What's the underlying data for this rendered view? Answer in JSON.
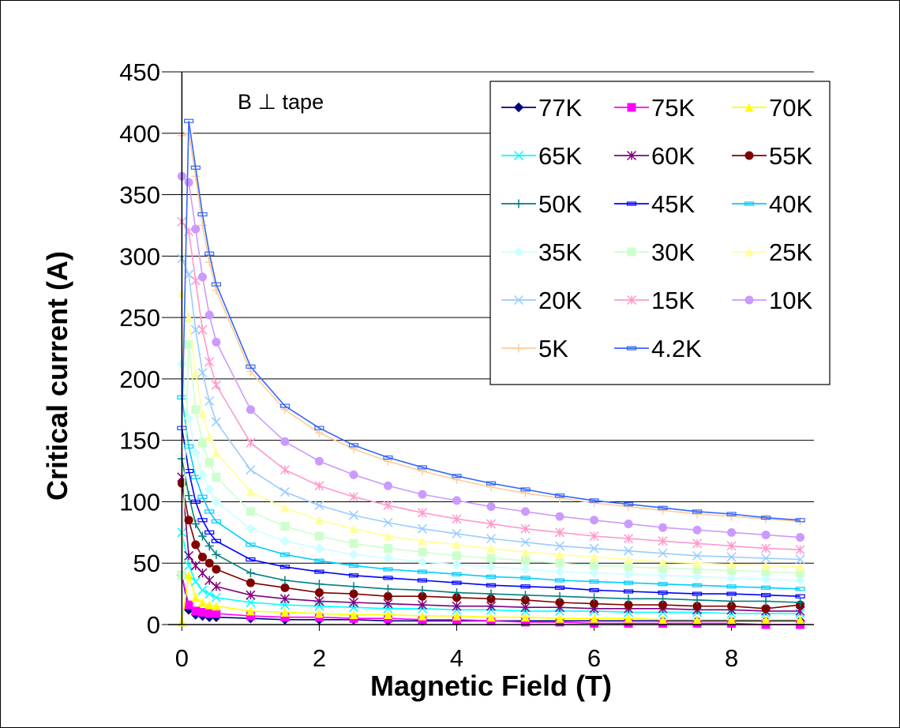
{
  "chart_data": {
    "type": "line",
    "title": "",
    "xlabel": "Magnetic Field (T)",
    "ylabel": "Critical current (A)",
    "xlim": [
      -0.2,
      9.2
    ],
    "ylim": [
      0,
      450
    ],
    "xticks": [
      0,
      2,
      4,
      6,
      8
    ],
    "yticks": [
      0,
      50,
      100,
      150,
      200,
      250,
      300,
      350,
      400,
      450
    ],
    "grid": "horizontal",
    "legend_position": "top-right",
    "annotation": "B ⊥ tape",
    "x": [
      0,
      0.1,
      0.2,
      0.3,
      0.4,
      0.5,
      1,
      1.5,
      2,
      2.5,
      3,
      3.5,
      4,
      4.5,
      5,
      5.5,
      6,
      6.5,
      7,
      7.5,
      8,
      8.5,
      9
    ],
    "series": [
      {
        "name": "77K",
        "color": "#000080",
        "marker": "diamond",
        "values": [
          40,
          12,
          8,
          7,
          6,
          6,
          5,
          4,
          4,
          4,
          3,
          3,
          3,
          3,
          3,
          3,
          3,
          3,
          3,
          3,
          3,
          3,
          3
        ]
      },
      {
        "name": "75K",
        "color": "#ff00ff",
        "marker": "square",
        "values": [
          40,
          16,
          11,
          10,
          9,
          9,
          7,
          6,
          6,
          5,
          5,
          4,
          4,
          3,
          2,
          2,
          1,
          1,
          1,
          1,
          1,
          0,
          0
        ]
      },
      {
        "name": "70K",
        "color": "#ffff00",
        "marker": "triangle",
        "values": [
          2,
          40,
          22,
          18,
          16,
          15,
          11,
          10,
          9,
          8,
          8,
          7,
          7,
          6,
          6,
          5,
          5,
          5,
          4,
          4,
          4,
          4,
          4
        ]
      },
      {
        "name": "65K",
        "color": "#00ffff",
        "marker": "x",
        "values": [
          75,
          48,
          35,
          28,
          25,
          22,
          18,
          16,
          15,
          14,
          13,
          13,
          12,
          12,
          11,
          11,
          11,
          10,
          10,
          10,
          9,
          9,
          9
        ]
      },
      {
        "name": "60K",
        "color": "#800080",
        "marker": "star",
        "values": [
          120,
          56,
          48,
          42,
          36,
          31,
          24,
          21,
          19,
          18,
          17,
          16,
          15,
          15,
          14,
          14,
          13,
          13,
          13,
          12,
          12,
          11,
          11
        ]
      },
      {
        "name": "55K",
        "color": "#800000",
        "marker": "circle",
        "values": [
          115,
          85,
          65,
          55,
          50,
          45,
          34,
          30,
          26,
          25,
          23,
          23,
          22,
          21,
          20,
          18,
          17,
          16,
          16,
          15,
          15,
          13,
          16
        ]
      },
      {
        "name": "50K",
        "color": "#008080",
        "marker": "plus",
        "values": [
          135,
          105,
          82,
          72,
          64,
          57,
          42,
          36,
          33,
          31,
          29,
          28,
          26,
          25,
          24,
          23,
          22,
          21,
          21,
          20,
          19,
          19,
          18
        ]
      },
      {
        "name": "45K",
        "color": "#0000ff",
        "marker": "dash",
        "values": [
          160,
          125,
          100,
          85,
          75,
          68,
          53,
          47,
          43,
          40,
          38,
          36,
          34,
          32,
          31,
          30,
          28,
          27,
          26,
          25,
          25,
          24,
          23
        ]
      },
      {
        "name": "40K",
        "color": "#00ccff",
        "marker": "dash",
        "values": [
          185,
          145,
          120,
          104,
          92,
          84,
          65,
          57,
          52,
          48,
          45,
          43,
          41,
          39,
          38,
          36,
          35,
          34,
          33,
          32,
          31,
          30,
          29
        ]
      },
      {
        "name": "35K",
        "color": "#ccffff",
        "marker": "diamond",
        "values": [
          212,
          168,
          140,
          122,
          110,
          100,
          78,
          68,
          62,
          57,
          54,
          51,
          49,
          47,
          45,
          43,
          42,
          41,
          40,
          39,
          38,
          37,
          36
        ]
      },
      {
        "name": "30K",
        "color": "#ccffcc",
        "marker": "square",
        "values": [
          40,
          228,
          175,
          148,
          132,
          120,
          92,
          80,
          72,
          66,
          62,
          59,
          56,
          54,
          52,
          50,
          48,
          47,
          46,
          45,
          44,
          43,
          42
        ]
      },
      {
        "name": "25K",
        "color": "#ffff99",
        "marker": "triangle",
        "values": [
          270,
          250,
          205,
          172,
          153,
          140,
          108,
          95,
          85,
          78,
          72,
          68,
          65,
          62,
          59,
          57,
          55,
          53,
          51,
          50,
          49,
          48,
          47
        ]
      },
      {
        "name": "20K",
        "color": "#99ccff",
        "marker": "x",
        "values": [
          298,
          285,
          240,
          205,
          182,
          165,
          126,
          108,
          97,
          89,
          83,
          78,
          74,
          70,
          67,
          64,
          62,
          60,
          58,
          56,
          55,
          54,
          53
        ]
      },
      {
        "name": "15K",
        "color": "#ff99cc",
        "marker": "star",
        "values": [
          328,
          320,
          280,
          240,
          214,
          195,
          148,
          126,
          113,
          104,
          97,
          91,
          86,
          82,
          78,
          75,
          72,
          70,
          68,
          66,
          64,
          62,
          61
        ]
      },
      {
        "name": "10K",
        "color": "#cc99ff",
        "marker": "circle",
        "values": [
          365,
          360,
          322,
          283,
          252,
          230,
          175,
          149,
          133,
          122,
          113,
          106,
          101,
          96,
          92,
          88,
          85,
          82,
          79,
          77,
          75,
          73,
          71
        ]
      },
      {
        "name": "5K",
        "color": "#ffcc99",
        "marker": "plus",
        "values": [
          398,
          400,
          365,
          325,
          295,
          272,
          206,
          175,
          156,
          143,
          133,
          125,
          118,
          112,
          107,
          103,
          99,
          96,
          93,
          90,
          88,
          86,
          84
        ]
      },
      {
        "name": "4.2K",
        "color": "#3366ff",
        "marker": "dash",
        "values": [
          160,
          410,
          372,
          334,
          302,
          277,
          210,
          178,
          160,
          146,
          136,
          128,
          121,
          115,
          110,
          105,
          101,
          98,
          95,
          92,
          90,
          87,
          85
        ]
      }
    ]
  }
}
